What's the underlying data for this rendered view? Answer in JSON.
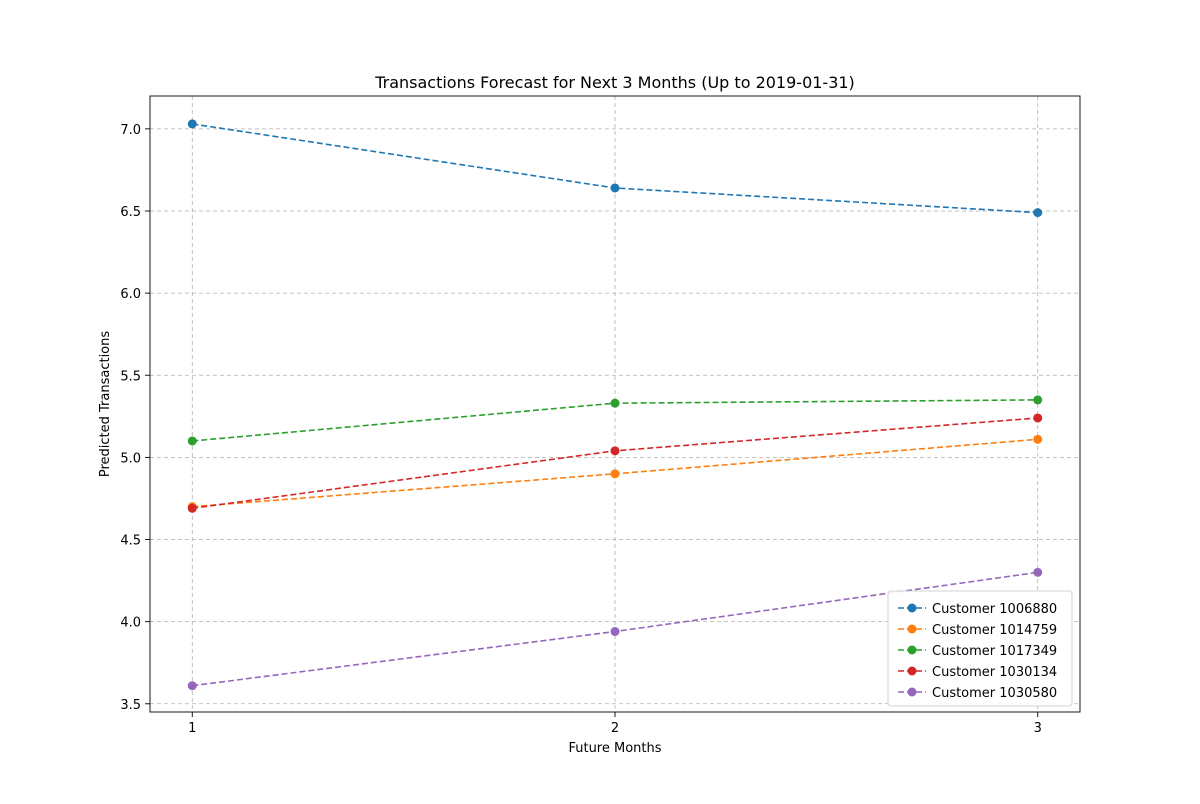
{
  "chart_data": {
    "type": "line",
    "title": "Transactions Forecast for Next 3 Months (Up to 2019-01-31)",
    "xlabel": "Future Months",
    "ylabel": "Predicted Transactions",
    "x": [
      1,
      2,
      3
    ],
    "x_tick_labels": [
      "1",
      "2",
      "3"
    ],
    "xlim": [
      0.9,
      3.1
    ],
    "ylim": [
      3.45,
      7.2
    ],
    "y_ticks": [
      3.5,
      4.0,
      4.5,
      5.0,
      5.5,
      6.0,
      6.5,
      7.0
    ],
    "y_tick_labels": [
      "3.5",
      "4.0",
      "4.5",
      "5.0",
      "5.5",
      "6.0",
      "6.5",
      "7.0"
    ],
    "grid": true,
    "line_style": "dashed",
    "marker": "circle",
    "legend_position": "lower-right",
    "series": [
      {
        "name": "Customer 1006880",
        "color": "#1f77b4",
        "values": [
          7.03,
          6.64,
          6.49
        ]
      },
      {
        "name": "Customer 1014759",
        "color": "#ff7f0e",
        "values": [
          4.7,
          4.9,
          5.11
        ]
      },
      {
        "name": "Customer 1017349",
        "color": "#2ca02c",
        "values": [
          5.1,
          5.33,
          5.35
        ]
      },
      {
        "name": "Customer 1030134",
        "color": "#d62728",
        "values": [
          4.69,
          5.04,
          5.24
        ]
      },
      {
        "name": "Customer 1030580",
        "color": "#9467bd",
        "values": [
          3.61,
          3.94,
          4.3
        ]
      }
    ]
  }
}
